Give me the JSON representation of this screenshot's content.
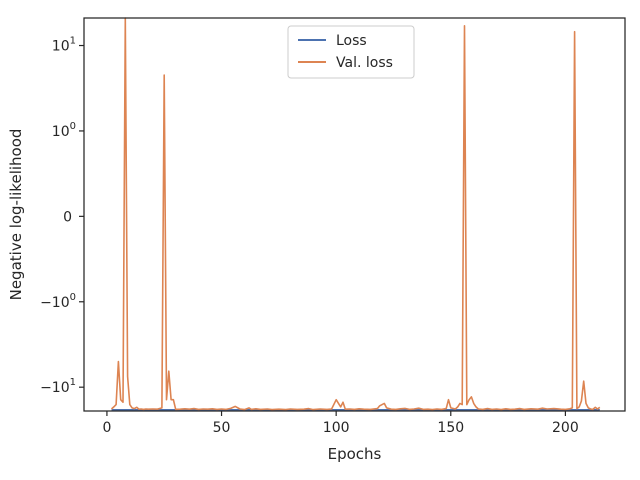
{
  "chart_data": {
    "type": "line",
    "xlabel": "Epochs",
    "ylabel": "Negative log-likelihood",
    "yscale": "symlog",
    "xlim": [
      -10,
      226
    ],
    "ylim": [
      -19,
      21
    ],
    "x_ticks": [
      {
        "value": 0,
        "label": "0"
      },
      {
        "value": 50,
        "label": "50"
      },
      {
        "value": 100,
        "label": "100"
      },
      {
        "value": 150,
        "label": "150"
      },
      {
        "value": 200,
        "label": "200"
      }
    ],
    "y_ticks": [
      {
        "value": 10,
        "base": "10",
        "exp": "1",
        "sign": ""
      },
      {
        "value": 1,
        "base": "10",
        "exp": "0",
        "sign": ""
      },
      {
        "value": 0,
        "base": "0",
        "exp": "",
        "sign": ""
      },
      {
        "value": -1,
        "base": "10",
        "exp": "0",
        "sign": "−"
      },
      {
        "value": -10,
        "base": "10",
        "exp": "1",
        "sign": "−"
      }
    ],
    "legend": {
      "placement": "upper-center"
    },
    "grid": false,
    "series": [
      {
        "name": "Loss",
        "color": "#4c72b0",
        "points": [
          [
            2,
            -18.4
          ],
          [
            215,
            -18.4
          ]
        ]
      },
      {
        "name": "Val. loss",
        "color": "#dd8452",
        "points": [
          [
            2,
            -18.0
          ],
          [
            3,
            -17.0
          ],
          [
            4,
            -16.0
          ],
          [
            5,
            -5.0
          ],
          [
            6,
            -14.0
          ],
          [
            7,
            -15.0
          ],
          [
            8,
            21.0
          ],
          [
            9,
            -7.5
          ],
          [
            10,
            -16.0
          ],
          [
            11,
            -17.5
          ],
          [
            12,
            -17.8
          ],
          [
            13,
            -17.2
          ],
          [
            14,
            -18.1
          ],
          [
            15,
            -18.0
          ],
          [
            16,
            -18.2
          ],
          [
            17,
            -18.0
          ],
          [
            18,
            -18.1
          ],
          [
            20,
            -18.0
          ],
          [
            22,
            -18.1
          ],
          [
            24,
            -17.5
          ],
          [
            25,
            4.5
          ],
          [
            26,
            -14.0
          ],
          [
            27,
            -6.5
          ],
          [
            28,
            -14.0
          ],
          [
            29,
            -14.0
          ],
          [
            30,
            -18.2
          ],
          [
            32,
            -18.1
          ],
          [
            34,
            -17.9
          ],
          [
            36,
            -18.1
          ],
          [
            38,
            -17.8
          ],
          [
            40,
            -18.2
          ],
          [
            42,
            -18.0
          ],
          [
            44,
            -18.1
          ],
          [
            46,
            -17.9
          ],
          [
            48,
            -18.2
          ],
          [
            50,
            -18.0
          ],
          [
            52,
            -18.2
          ],
          [
            54,
            -17.7
          ],
          [
            56,
            -16.8
          ],
          [
            58,
            -18.0
          ],
          [
            60,
            -18.3
          ],
          [
            62,
            -17.5
          ],
          [
            63,
            -18.2
          ],
          [
            65,
            -17.9
          ],
          [
            67,
            -18.2
          ],
          [
            70,
            -18.0
          ],
          [
            72,
            -18.3
          ],
          [
            75,
            -18.1
          ],
          [
            78,
            -18.3
          ],
          [
            80,
            -18.0
          ],
          [
            83,
            -18.2
          ],
          [
            86,
            -18.1
          ],
          [
            88,
            -17.8
          ],
          [
            90,
            -18.3
          ],
          [
            93,
            -18.0
          ],
          [
            96,
            -18.2
          ],
          [
            98,
            -18.0
          ],
          [
            100,
            -14.0
          ],
          [
            101,
            -15.5
          ],
          [
            102,
            -17.0
          ],
          [
            103,
            -15.0
          ],
          [
            104,
            -18.1
          ],
          [
            106,
            -18.0
          ],
          [
            108,
            -18.2
          ],
          [
            110,
            -17.9
          ],
          [
            112,
            -18.1
          ],
          [
            115,
            -18.2
          ],
          [
            118,
            -17.8
          ],
          [
            119,
            -16.5
          ],
          [
            121,
            -15.5
          ],
          [
            122,
            -17.5
          ],
          [
            124,
            -18.1
          ],
          [
            126,
            -18.2
          ],
          [
            128,
            -17.9
          ],
          [
            130,
            -17.7
          ],
          [
            132,
            -18.2
          ],
          [
            134,
            -18.0
          ],
          [
            136,
            -17.6
          ],
          [
            138,
            -18.2
          ],
          [
            140,
            -18.1
          ],
          [
            142,
            -18.3
          ],
          [
            144,
            -18.0
          ],
          [
            146,
            -18.2
          ],
          [
            148,
            -17.8
          ],
          [
            149,
            -14.0
          ],
          [
            150,
            -17.5
          ],
          [
            152,
            -18.0
          ],
          [
            153,
            -17.0
          ],
          [
            154,
            -15.5
          ],
          [
            155,
            -16.0
          ],
          [
            156,
            17.0
          ],
          [
            157,
            -16.0
          ],
          [
            158,
            -14.0
          ],
          [
            159,
            -13.0
          ],
          [
            160,
            -15.5
          ],
          [
            161,
            -17.0
          ],
          [
            162,
            -18.0
          ],
          [
            164,
            -18.2
          ],
          [
            166,
            -17.8
          ],
          [
            168,
            -18.2
          ],
          [
            170,
            -18.0
          ],
          [
            172,
            -18.3
          ],
          [
            174,
            -17.9
          ],
          [
            176,
            -18.2
          ],
          [
            178,
            -18.1
          ],
          [
            180,
            -17.8
          ],
          [
            182,
            -18.2
          ],
          [
            185,
            -17.9
          ],
          [
            188,
            -18.1
          ],
          [
            190,
            -17.6
          ],
          [
            192,
            -18.0
          ],
          [
            195,
            -17.8
          ],
          [
            198,
            -18.1
          ],
          [
            200,
            -18.2
          ],
          [
            202,
            -17.9
          ],
          [
            203,
            -17.5
          ],
          [
            204,
            14.5
          ],
          [
            205,
            -17.8
          ],
          [
            206,
            -17.0
          ],
          [
            207,
            -14.5
          ],
          [
            208,
            -8.5
          ],
          [
            209,
            -15.5
          ],
          [
            210,
            -17.5
          ],
          [
            211,
            -18.0
          ],
          [
            212,
            -18.2
          ],
          [
            213,
            -17.2
          ],
          [
            214,
            -18.0
          ],
          [
            215,
            -17.2
          ]
        ]
      }
    ]
  }
}
